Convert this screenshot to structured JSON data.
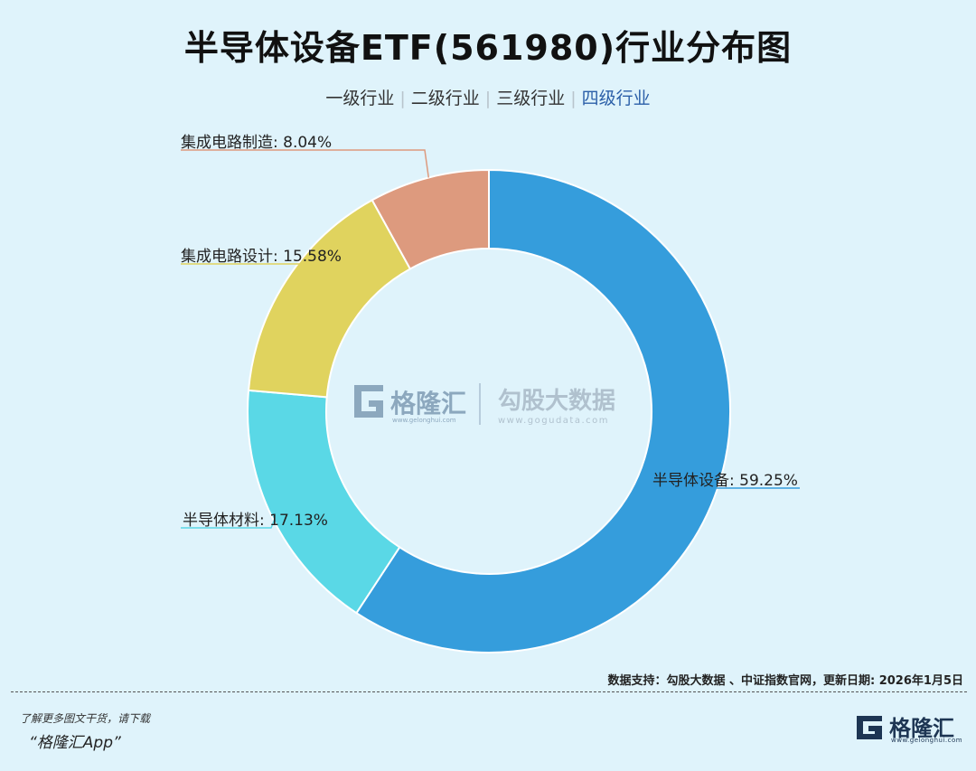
{
  "title": "半导体设备ETF(561980)行业分布图",
  "tabs": [
    {
      "label": "一级行业",
      "active": false
    },
    {
      "label": "二级行业",
      "active": false
    },
    {
      "label": "三级行业",
      "active": false
    },
    {
      "label": "四级行业",
      "active": true
    }
  ],
  "chart_data": {
    "type": "pie",
    "donut": true,
    "slices": [
      {
        "name": "半导体设备",
        "value": 59.25,
        "label": "半导体设备: 59.25%",
        "color": "#359ddc"
      },
      {
        "name": "半导体材料",
        "value": 17.13,
        "label": "半导体材料: 17.13%",
        "color": "#5ad8e6"
      },
      {
        "name": "集成电路设计",
        "value": 15.58,
        "label": "集成电路设计: 15.58%",
        "color": "#e0d35e"
      },
      {
        "name": "集成电路制造",
        "value": 8.04,
        "label": "集成电路制造: 8.04%",
        "color": "#dd9a7e"
      }
    ]
  },
  "watermark": {
    "brand1": "格隆汇",
    "brand1_url": "www.gelonghui.com",
    "brand2": "勾股大数据",
    "brand2_url": "www.gogudata.com"
  },
  "footer": {
    "source": "数据支持：勾股大数据 、中证指数官网，更新日期: 2026年1月5日",
    "promo_line1": "了解更多图文干货，请下载",
    "promo_line2": "“格隆汇App”",
    "brand_name": "格隆汇",
    "brand_url": "www.gelonghui.com"
  }
}
